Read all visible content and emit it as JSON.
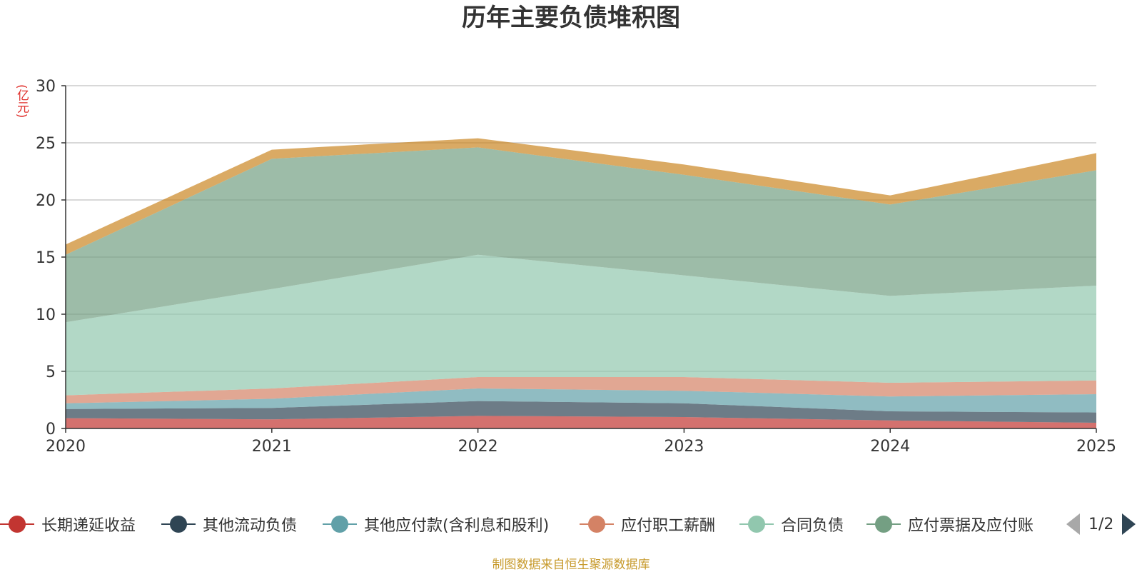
{
  "colors": {
    "title": "#333333",
    "unit": "#e0302c",
    "source": "#c79a2c",
    "grid": "#cccccc",
    "axis": "#333333"
  },
  "legend": {
    "items": [
      {
        "label": "长期递延收益",
        "color": "#c23531"
      },
      {
        "label": "其他流动负债",
        "color": "#2f4554"
      },
      {
        "label": "其他应付款(含利息和股利)",
        "color": "#61a0a8"
      },
      {
        "label": "应付职工薪酬",
        "color": "#d48265"
      },
      {
        "label": "合同负债",
        "color": "#91c7ae"
      },
      {
        "label": "应付票据及应付账款",
        "display": "应付票据及应付账",
        "color": "#749f83"
      }
    ],
    "page": "1/2"
  },
  "footer": {
    "source": "制图数据来自恒生聚源数据库"
  },
  "chart_data": {
    "type": "area",
    "stacked": true,
    "title": "历年主要负债堆积图",
    "ylabel": "(亿元)",
    "xlabel": "",
    "categories": [
      "2020",
      "2021",
      "2022",
      "2023",
      "2024",
      "2025"
    ],
    "ylim": [
      0,
      30
    ],
    "yticks": [
      0,
      5,
      10,
      15,
      20,
      25,
      30
    ],
    "grid": true,
    "legend_position": "bottom",
    "series": [
      {
        "name": "长期递延收益",
        "color": "#c23531",
        "values": [
          0.9,
          0.8,
          1.1,
          1.0,
          0.7,
          0.5
        ]
      },
      {
        "name": "其他流动负债",
        "color": "#2f4554",
        "values": [
          0.8,
          1.0,
          1.3,
          1.2,
          0.8,
          0.9
        ]
      },
      {
        "name": "其他应付款(含利息和股利)",
        "color": "#61a0a8",
        "values": [
          0.5,
          0.8,
          1.1,
          1.1,
          1.3,
          1.6
        ]
      },
      {
        "name": "应付职工薪酬",
        "color": "#d48265",
        "values": [
          0.7,
          0.9,
          1.0,
          1.2,
          1.2,
          1.2
        ]
      },
      {
        "name": "合同负债",
        "color": "#91c7ae",
        "values": [
          6.4,
          8.7,
          10.7,
          8.9,
          7.6,
          8.3
        ]
      },
      {
        "name": "应付票据及应付账款",
        "color": "#749f83",
        "values": [
          5.9,
          11.4,
          9.4,
          8.8,
          8.0,
          10.1
        ]
      },
      {
        "name": "",
        "color": "#ca8622",
        "values": [
          0.9,
          0.8,
          0.8,
          0.9,
          0.8,
          1.5
        ]
      }
    ]
  }
}
